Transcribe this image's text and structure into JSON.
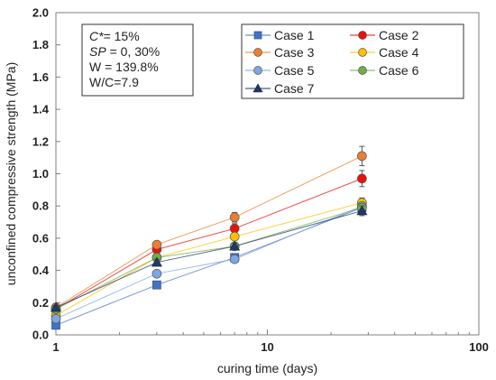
{
  "chart_data": {
    "type": "scatter",
    "xlabel": "curing time (days)",
    "ylabel": "unconfined compressive strength (MPa)",
    "xscale": "log",
    "xlim": [
      1,
      100
    ],
    "ylim": [
      0,
      2.0
    ],
    "x_ticks": [
      1,
      10,
      100
    ],
    "y_ticks": [
      0.0,
      0.2,
      0.4,
      0.6,
      0.8,
      1.0,
      1.2,
      1.4,
      1.6,
      1.8,
      2.0
    ],
    "y_tick_labels": [
      "0.0",
      "0.2",
      "0.4",
      "0.6",
      "0.8",
      "1.0",
      "1.2",
      "1.4",
      "1.6",
      "1.8",
      "2.0"
    ],
    "x_tick_labels": [
      "1",
      "10",
      "100"
    ],
    "grid": false,
    "legend_position": "top-right",
    "x": [
      1,
      3,
      7,
      28
    ],
    "series": [
      {
        "name": "Case 1",
        "marker": "square",
        "color": "#4472C4",
        "values": [
          0.06,
          0.31,
          0.48,
          0.79
        ]
      },
      {
        "name": "Case 2",
        "marker": "circle",
        "color": "#E8120C",
        "values": [
          0.16,
          0.53,
          0.66,
          0.97
        ],
        "errors": [
          0.01,
          0.02,
          0.03,
          0.05
        ]
      },
      {
        "name": "Case 3",
        "marker": "circle",
        "color": "#ED7D31",
        "values": [
          0.17,
          0.56,
          0.73,
          1.11
        ],
        "errors": [
          0.01,
          0.02,
          0.03,
          0.06
        ]
      },
      {
        "name": "Case 4",
        "marker": "circle",
        "color": "#FFC000",
        "values": [
          0.12,
          0.48,
          0.61,
          0.82
        ],
        "errors": [
          0.01,
          0.02,
          0.02,
          0.03
        ]
      },
      {
        "name": "Case 5",
        "marker": "circle",
        "color": "#7EA6E0",
        "values": [
          0.1,
          0.38,
          0.47,
          0.8
        ]
      },
      {
        "name": "Case 6",
        "marker": "circle",
        "color": "#70AD47",
        "values": [
          0.16,
          0.48,
          0.55,
          0.79
        ]
      },
      {
        "name": "Case 7",
        "marker": "triangle",
        "color": "#203864",
        "values": [
          0.17,
          0.45,
          0.55,
          0.77
        ],
        "errors": [
          0.01,
          0.02,
          0.02,
          0.03
        ]
      }
    ],
    "annotation": {
      "lines": [
        {
          "italic": "C*",
          "rest": "= 15%"
        },
        {
          "italic": "SP",
          "rest": " = 0, 30%"
        },
        {
          "italic": "",
          "rest": "W = 139.8%"
        },
        {
          "italic": "",
          "rest": "W/C=7.9"
        }
      ]
    }
  }
}
